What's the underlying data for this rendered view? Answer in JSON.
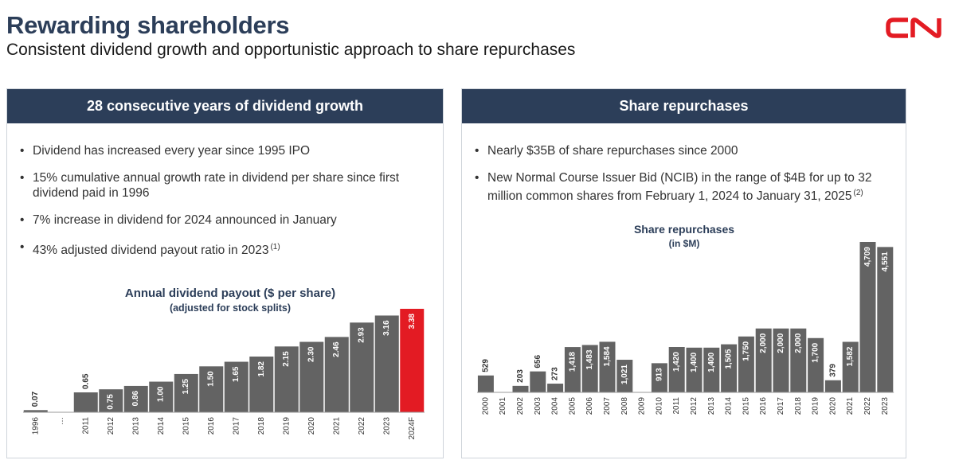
{
  "header": {
    "title": "Rewarding shareholders",
    "subtitle": "Consistent dividend growth and opportunistic approach to share repurchases",
    "logo_text": "CN",
    "logo_color": "#e31b23"
  },
  "left_panel": {
    "heading": "28 consecutive years of dividend growth",
    "bullets": [
      {
        "text": "Dividend has increased every year since 1995 IPO",
        "note": ""
      },
      {
        "text": "15% cumulative annual growth rate in dividend per share since first dividend paid in 1996",
        "note": ""
      },
      {
        "text": "7% increase in dividend for 2024 announced in January",
        "note": ""
      },
      {
        "text": "43% adjusted dividend payout ratio in 2023",
        "note": "(1)"
      }
    ],
    "chart_title": "Annual dividend payout ($ per share)",
    "chart_subtitle": "(adjusted for stock splits)"
  },
  "right_panel": {
    "heading": "Share repurchases",
    "bullets": [
      {
        "text": "Nearly $35B of share repurchases since 2000",
        "note": ""
      },
      {
        "text": "New Normal Course Issuer Bid (NCIB) in the range of $4B for up to 32 million common shares from February 1, 2024 to January 31, 2025",
        "note": "(2)"
      }
    ],
    "chart_title": "Share repurchases",
    "chart_subtitle": "(in $M)"
  },
  "colors": {
    "navy": "#2c3e59",
    "bar_gray": "#636363",
    "highlight_red": "#e31b23"
  },
  "chart_data": [
    {
      "type": "bar",
      "title": "Annual dividend payout ($ per share)",
      "subtitle": "(adjusted for stock splits)",
      "categories": [
        "1996",
        "...",
        "2011",
        "2012",
        "2013",
        "2014",
        "2015",
        "2016",
        "2017",
        "2018",
        "2019",
        "2020",
        "2021",
        "2022",
        "2023",
        "2024F"
      ],
      "values": [
        0.07,
        null,
        0.65,
        0.75,
        0.86,
        1.0,
        1.25,
        1.5,
        1.65,
        1.82,
        2.15,
        2.3,
        2.46,
        2.93,
        3.16,
        3.38
      ],
      "labels": [
        "0.07",
        "",
        "0.65",
        "0.75",
        "0.86",
        "1.00",
        "1.25",
        "1.50",
        "1.65",
        "1.82",
        "2.15",
        "2.30",
        "2.46",
        "2.93",
        "3.16",
        "3.38"
      ],
      "highlight_category": "2024F",
      "ylim": [
        0,
        3.38
      ],
      "grid": false
    },
    {
      "type": "bar",
      "title": "Share repurchases",
      "subtitle": "(in $M)",
      "categories": [
        "2000",
        "2001",
        "2002",
        "2003",
        "2004",
        "2005",
        "2006",
        "2007",
        "2008",
        "2009",
        "2010",
        "2011",
        "2012",
        "2013",
        "2014",
        "2015",
        "2016",
        "2017",
        "2018",
        "2019",
        "2020",
        "2021",
        "2022",
        "2023"
      ],
      "values": [
        529,
        0,
        203,
        656,
        273,
        1418,
        1483,
        1584,
        1021,
        0,
        913,
        1420,
        1400,
        1400,
        1505,
        1750,
        2000,
        2000,
        2000,
        1700,
        379,
        1582,
        4709,
        4551
      ],
      "labels": [
        "529",
        "",
        "203",
        "656",
        "273",
        "1,418",
        "1,483",
        "1,584",
        "1,021",
        "",
        "913",
        "1,420",
        "1,400",
        "1,400",
        "1,505",
        "1,750",
        "2,000",
        "2,000",
        "2,000",
        "1,700",
        "379",
        "1,582",
        "4,709",
        "4,551"
      ],
      "ylim": [
        0,
        4709
      ],
      "grid": false
    }
  ]
}
